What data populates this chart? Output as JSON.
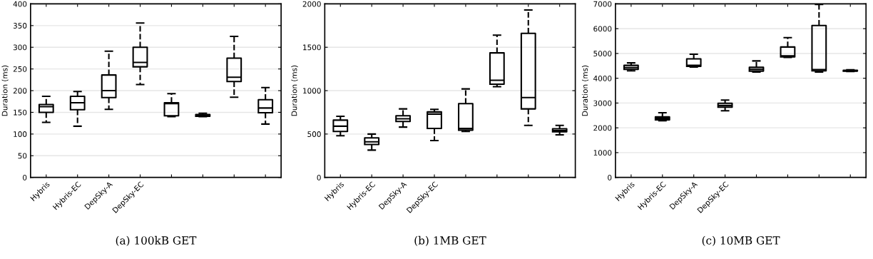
{
  "chart_data": [
    {
      "type": "box",
      "title": "(a) 100kB GET",
      "ylabel": "Duration (ms)",
      "categories": [
        "Hybris",
        "Hybris-EC",
        "DepSky-A",
        "DepSky-EC",
        null,
        null,
        null,
        null
      ],
      "ylim": [
        0,
        400
      ],
      "yticks": [
        0,
        50,
        100,
        150,
        200,
        250,
        300,
        350,
        400
      ],
      "grid": "y",
      "line_style": "dashed",
      "boxes": [
        {
          "low": 127,
          "q1": 150,
          "median": 163,
          "q3": 168,
          "high": 187
        },
        {
          "low": 118,
          "q1": 156,
          "median": 172,
          "q3": 187,
          "high": 198
        },
        {
          "low": 157,
          "q1": 184,
          "median": 200,
          "q3": 236,
          "high": 291
        },
        {
          "low": 214,
          "q1": 255,
          "median": 265,
          "q3": 300,
          "high": 356
        },
        {
          "low": 140,
          "q1": 142,
          "median": 170,
          "q3": 172,
          "high": 193
        },
        {
          "low": 140,
          "q1": 141,
          "median": 143,
          "q3": 145,
          "high": 148
        },
        {
          "low": 185,
          "q1": 221,
          "median": 231,
          "q3": 275,
          "high": 325
        },
        {
          "low": 123,
          "q1": 149,
          "median": 160,
          "q3": 179,
          "high": 207
        }
      ]
    },
    {
      "type": "box",
      "title": "(b) 1MB GET",
      "ylabel": "Duration (ms)",
      "categories": [
        "Hybris",
        "Hybris-EC",
        "DepSky-A",
        "DepSky-EC",
        null,
        null,
        null,
        null
      ],
      "ylim": [
        0,
        2000
      ],
      "yticks": [
        0,
        500,
        1000,
        1500,
        2000
      ],
      "grid": "y",
      "line_style": "dashed",
      "boxes": [
        {
          "low": 480,
          "q1": 530,
          "median": 590,
          "q3": 660,
          "high": 705
        },
        {
          "low": 315,
          "q1": 380,
          "median": 410,
          "q3": 455,
          "high": 500
        },
        {
          "low": 580,
          "q1": 645,
          "median": 675,
          "q3": 710,
          "high": 790
        },
        {
          "low": 425,
          "q1": 565,
          "median": 730,
          "q3": 755,
          "high": 785
        },
        {
          "low": 530,
          "q1": 545,
          "median": 565,
          "q3": 850,
          "high": 1020
        },
        {
          "low": 1045,
          "q1": 1075,
          "median": 1120,
          "q3": 1435,
          "high": 1640
        },
        {
          "low": 600,
          "q1": 790,
          "median": 920,
          "q3": 1660,
          "high": 1930
        },
        {
          "low": 490,
          "q1": 525,
          "median": 540,
          "q3": 560,
          "high": 600
        }
      ]
    },
    {
      "type": "box",
      "title": "(c) 10MB GET",
      "ylabel": "Duration (ms)",
      "categories": [
        "Hybris",
        "Hybris-EC",
        "DepSky-A",
        "DepSky-EC",
        null,
        null,
        null,
        null
      ],
      "ylim": [
        0,
        7000
      ],
      "yticks": [
        0,
        1000,
        2000,
        3000,
        4000,
        5000,
        6000,
        7000
      ],
      "grid": "y",
      "line_style": "dashed",
      "boxes": [
        {
          "low": 4300,
          "q1": 4360,
          "median": 4430,
          "q3": 4520,
          "high": 4620
        },
        {
          "low": 2290,
          "q1": 2320,
          "median": 2380,
          "q3": 2440,
          "high": 2610
        },
        {
          "low": 4450,
          "q1": 4480,
          "median": 4520,
          "q3": 4780,
          "high": 4970
        },
        {
          "low": 2690,
          "q1": 2830,
          "median": 2900,
          "q3": 2990,
          "high": 3120
        },
        {
          "low": 4250,
          "q1": 4290,
          "median": 4360,
          "q3": 4440,
          "high": 4700
        },
        {
          "low": 4840,
          "q1": 4860,
          "median": 4900,
          "q3": 5260,
          "high": 5640
        },
        {
          "low": 4250,
          "q1": 4300,
          "median": 4350,
          "q3": 6130,
          "high": 6980
        },
        {
          "low": 4270,
          "q1": 4290,
          "median": 4300,
          "q3": 4320,
          "high": 4340
        }
      ]
    }
  ]
}
